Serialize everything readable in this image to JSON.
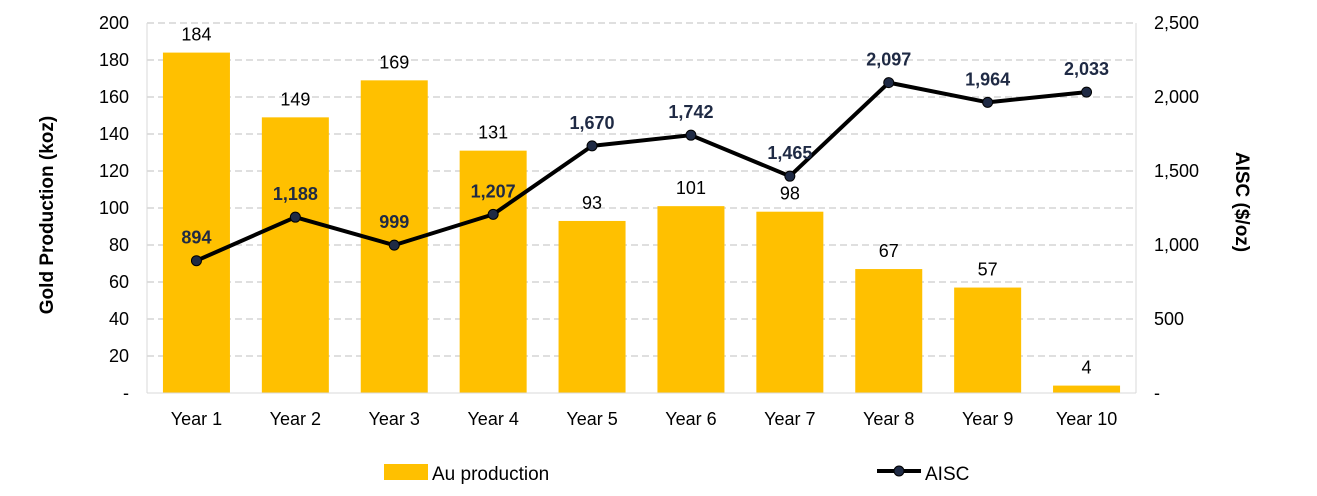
{
  "chart_data": {
    "type": "bar+line",
    "categories": [
      "Year 1",
      "Year 2",
      "Year 3",
      "Year 4",
      "Year 5",
      "Year 6",
      "Year 7",
      "Year 8",
      "Year 9",
      "Year 10"
    ],
    "series": [
      {
        "name": "Au production",
        "type": "bar",
        "axis": "left",
        "color": "#FFC000",
        "values": [
          184,
          149,
          169,
          131,
          93,
          101,
          98,
          67,
          57,
          4
        ],
        "labels": [
          "184",
          "149",
          "169",
          "131",
          "93",
          "101",
          "98",
          "67",
          "57",
          "4"
        ]
      },
      {
        "name": "AISC",
        "type": "line",
        "axis": "right",
        "color": "#000000",
        "marker_color": "#1f2a44",
        "values": [
          894,
          1188,
          999,
          1207,
          1670,
          1742,
          1465,
          2097,
          1964,
          2033
        ],
        "labels": [
          "894",
          "1,188",
          "999",
          "1,207",
          "1,670",
          "1,742",
          "1,465",
          "2,097",
          "1,964",
          "2,033"
        ]
      }
    ],
    "y_left": {
      "label": "Gold Production (koz)",
      "lim": [
        0,
        200
      ],
      "ticks": [
        0,
        20,
        40,
        60,
        80,
        100,
        120,
        140,
        160,
        180,
        200
      ],
      "tick_labels": [
        "-",
        "20",
        "40",
        "60",
        "80",
        "100",
        "120",
        "140",
        "160",
        "180",
        "200"
      ]
    },
    "y_right": {
      "label": "AISC ($/oz)",
      "lim": [
        0,
        2500
      ],
      "ticks": [
        0,
        500,
        1000,
        1500,
        2000,
        2500
      ],
      "tick_labels": [
        "-",
        "500",
        "1,000",
        "1,500",
        "2,000",
        "2,500"
      ]
    },
    "grid": true,
    "legend": {
      "placement": "bottom",
      "items": [
        {
          "label": "Au production",
          "kind": "bar"
        },
        {
          "label": "AISC",
          "kind": "line"
        }
      ]
    }
  }
}
